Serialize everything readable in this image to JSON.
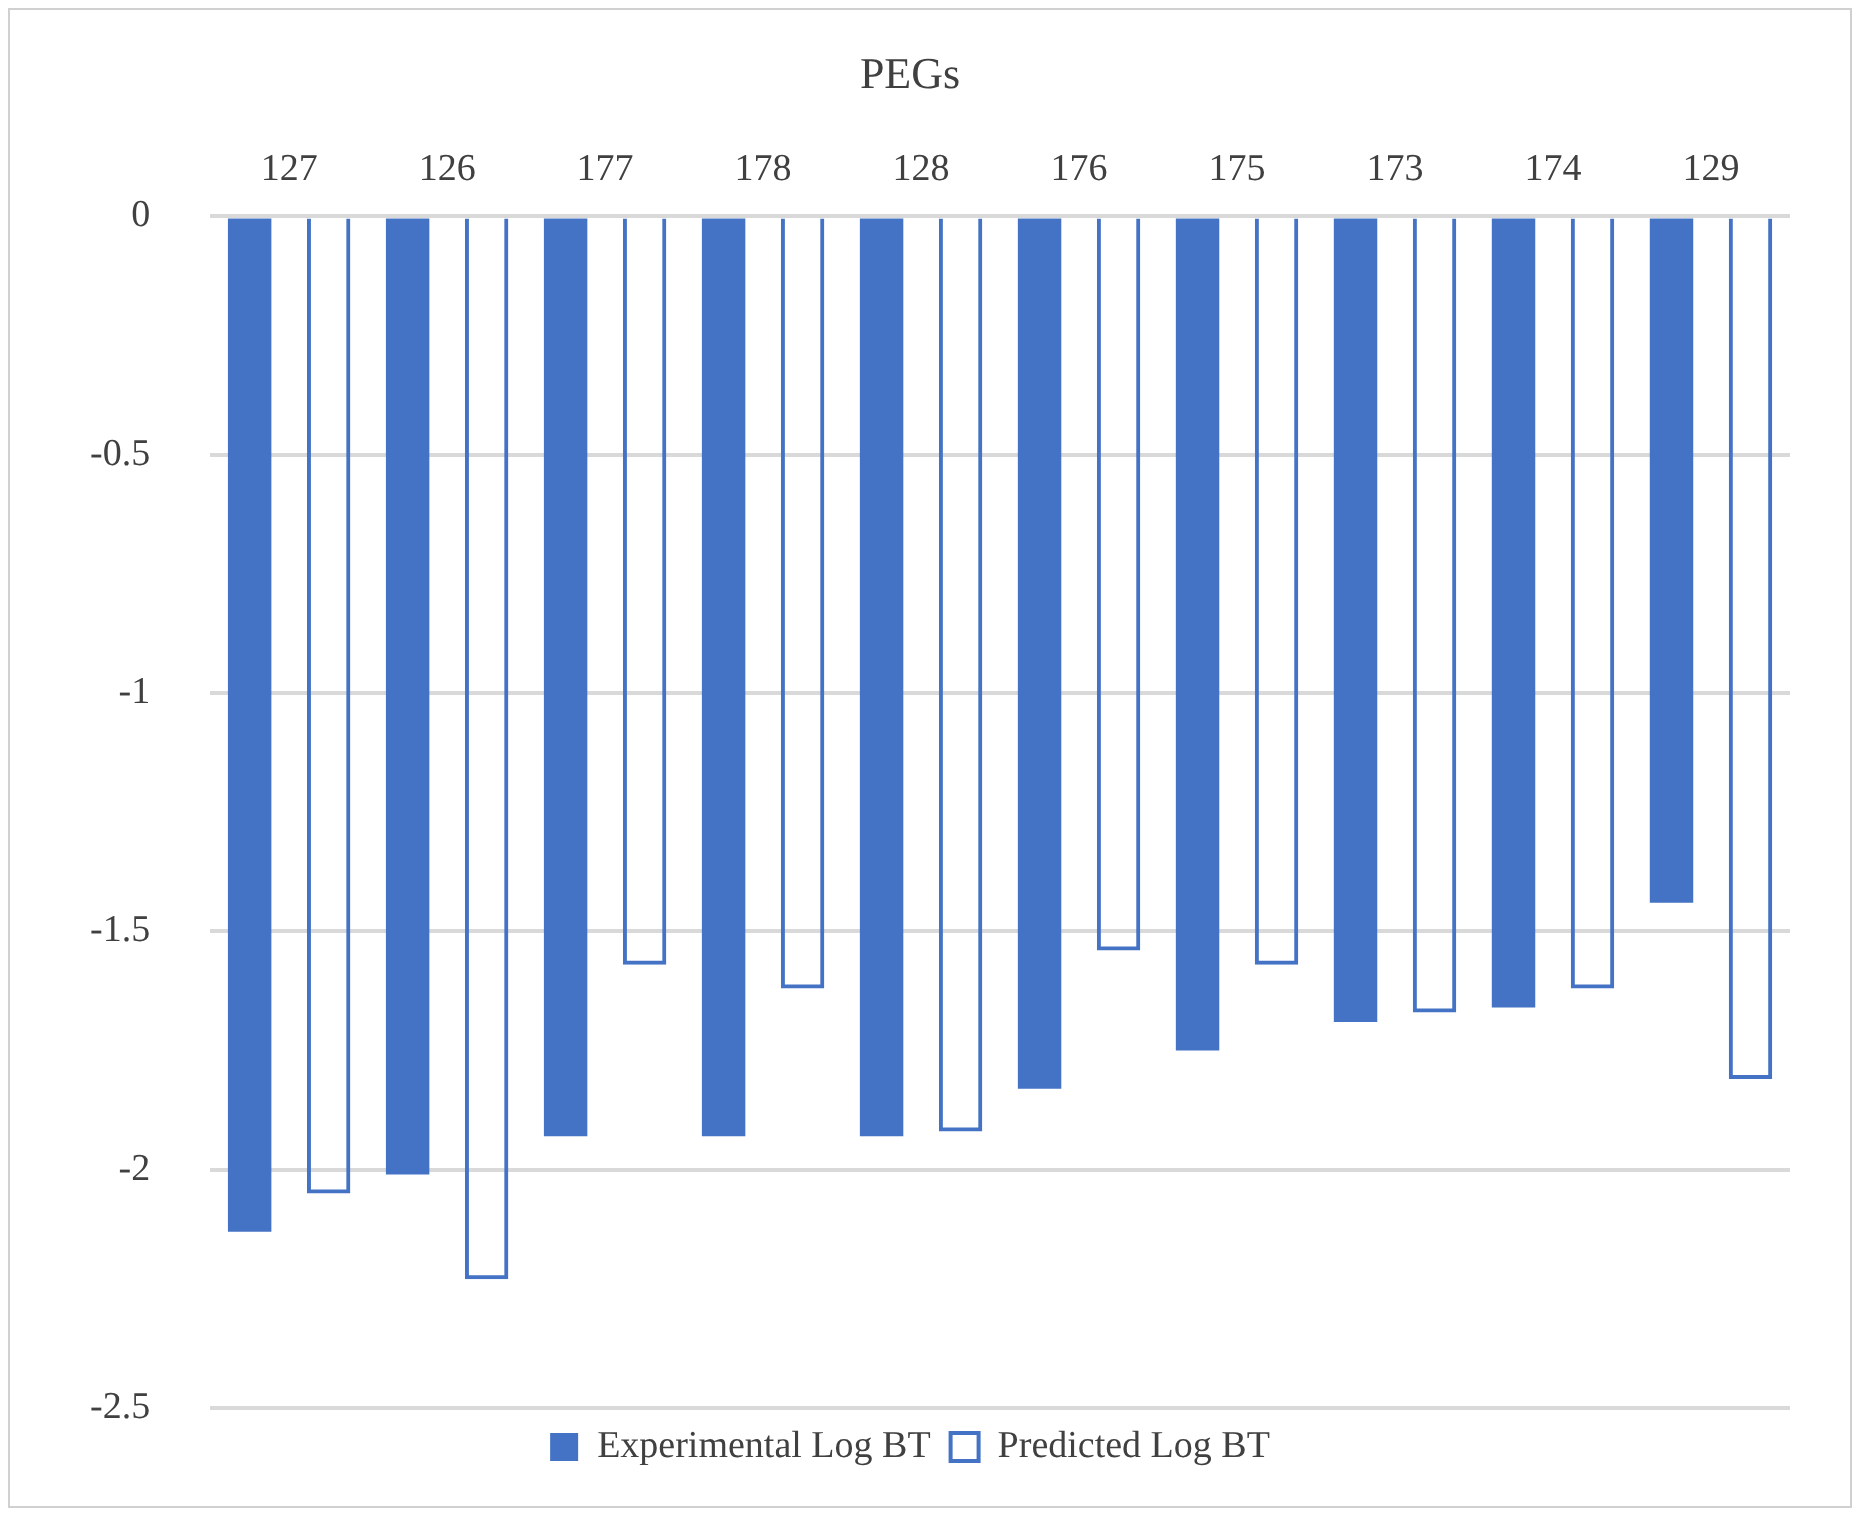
{
  "chart_data": {
    "type": "bar",
    "title": "PEGs",
    "categories": [
      "127",
      "126",
      "177",
      "178",
      "128",
      "176",
      "175",
      "173",
      "174",
      "129"
    ],
    "series": [
      {
        "name": "Experimental Log BT",
        "color": "#4472c4",
        "values": [
          -2.13,
          -2.01,
          -1.93,
          -1.93,
          -1.93,
          -1.83,
          -1.75,
          -1.69,
          -1.66,
          -1.44
        ]
      },
      {
        "name": "Predicted Log BT",
        "color": "#4472c4",
        "values": [
          -2.05,
          -2.23,
          -1.57,
          -1.62,
          -1.92,
          -1.54,
          -1.57,
          -1.67,
          -1.62,
          -1.81
        ]
      }
    ],
    "ylim": [
      -2.5,
      0
    ],
    "yticks": [
      -2.5,
      -2,
      -1.5,
      -1,
      -0.5,
      0
    ],
    "grid": "y",
    "legend": "bottom"
  }
}
